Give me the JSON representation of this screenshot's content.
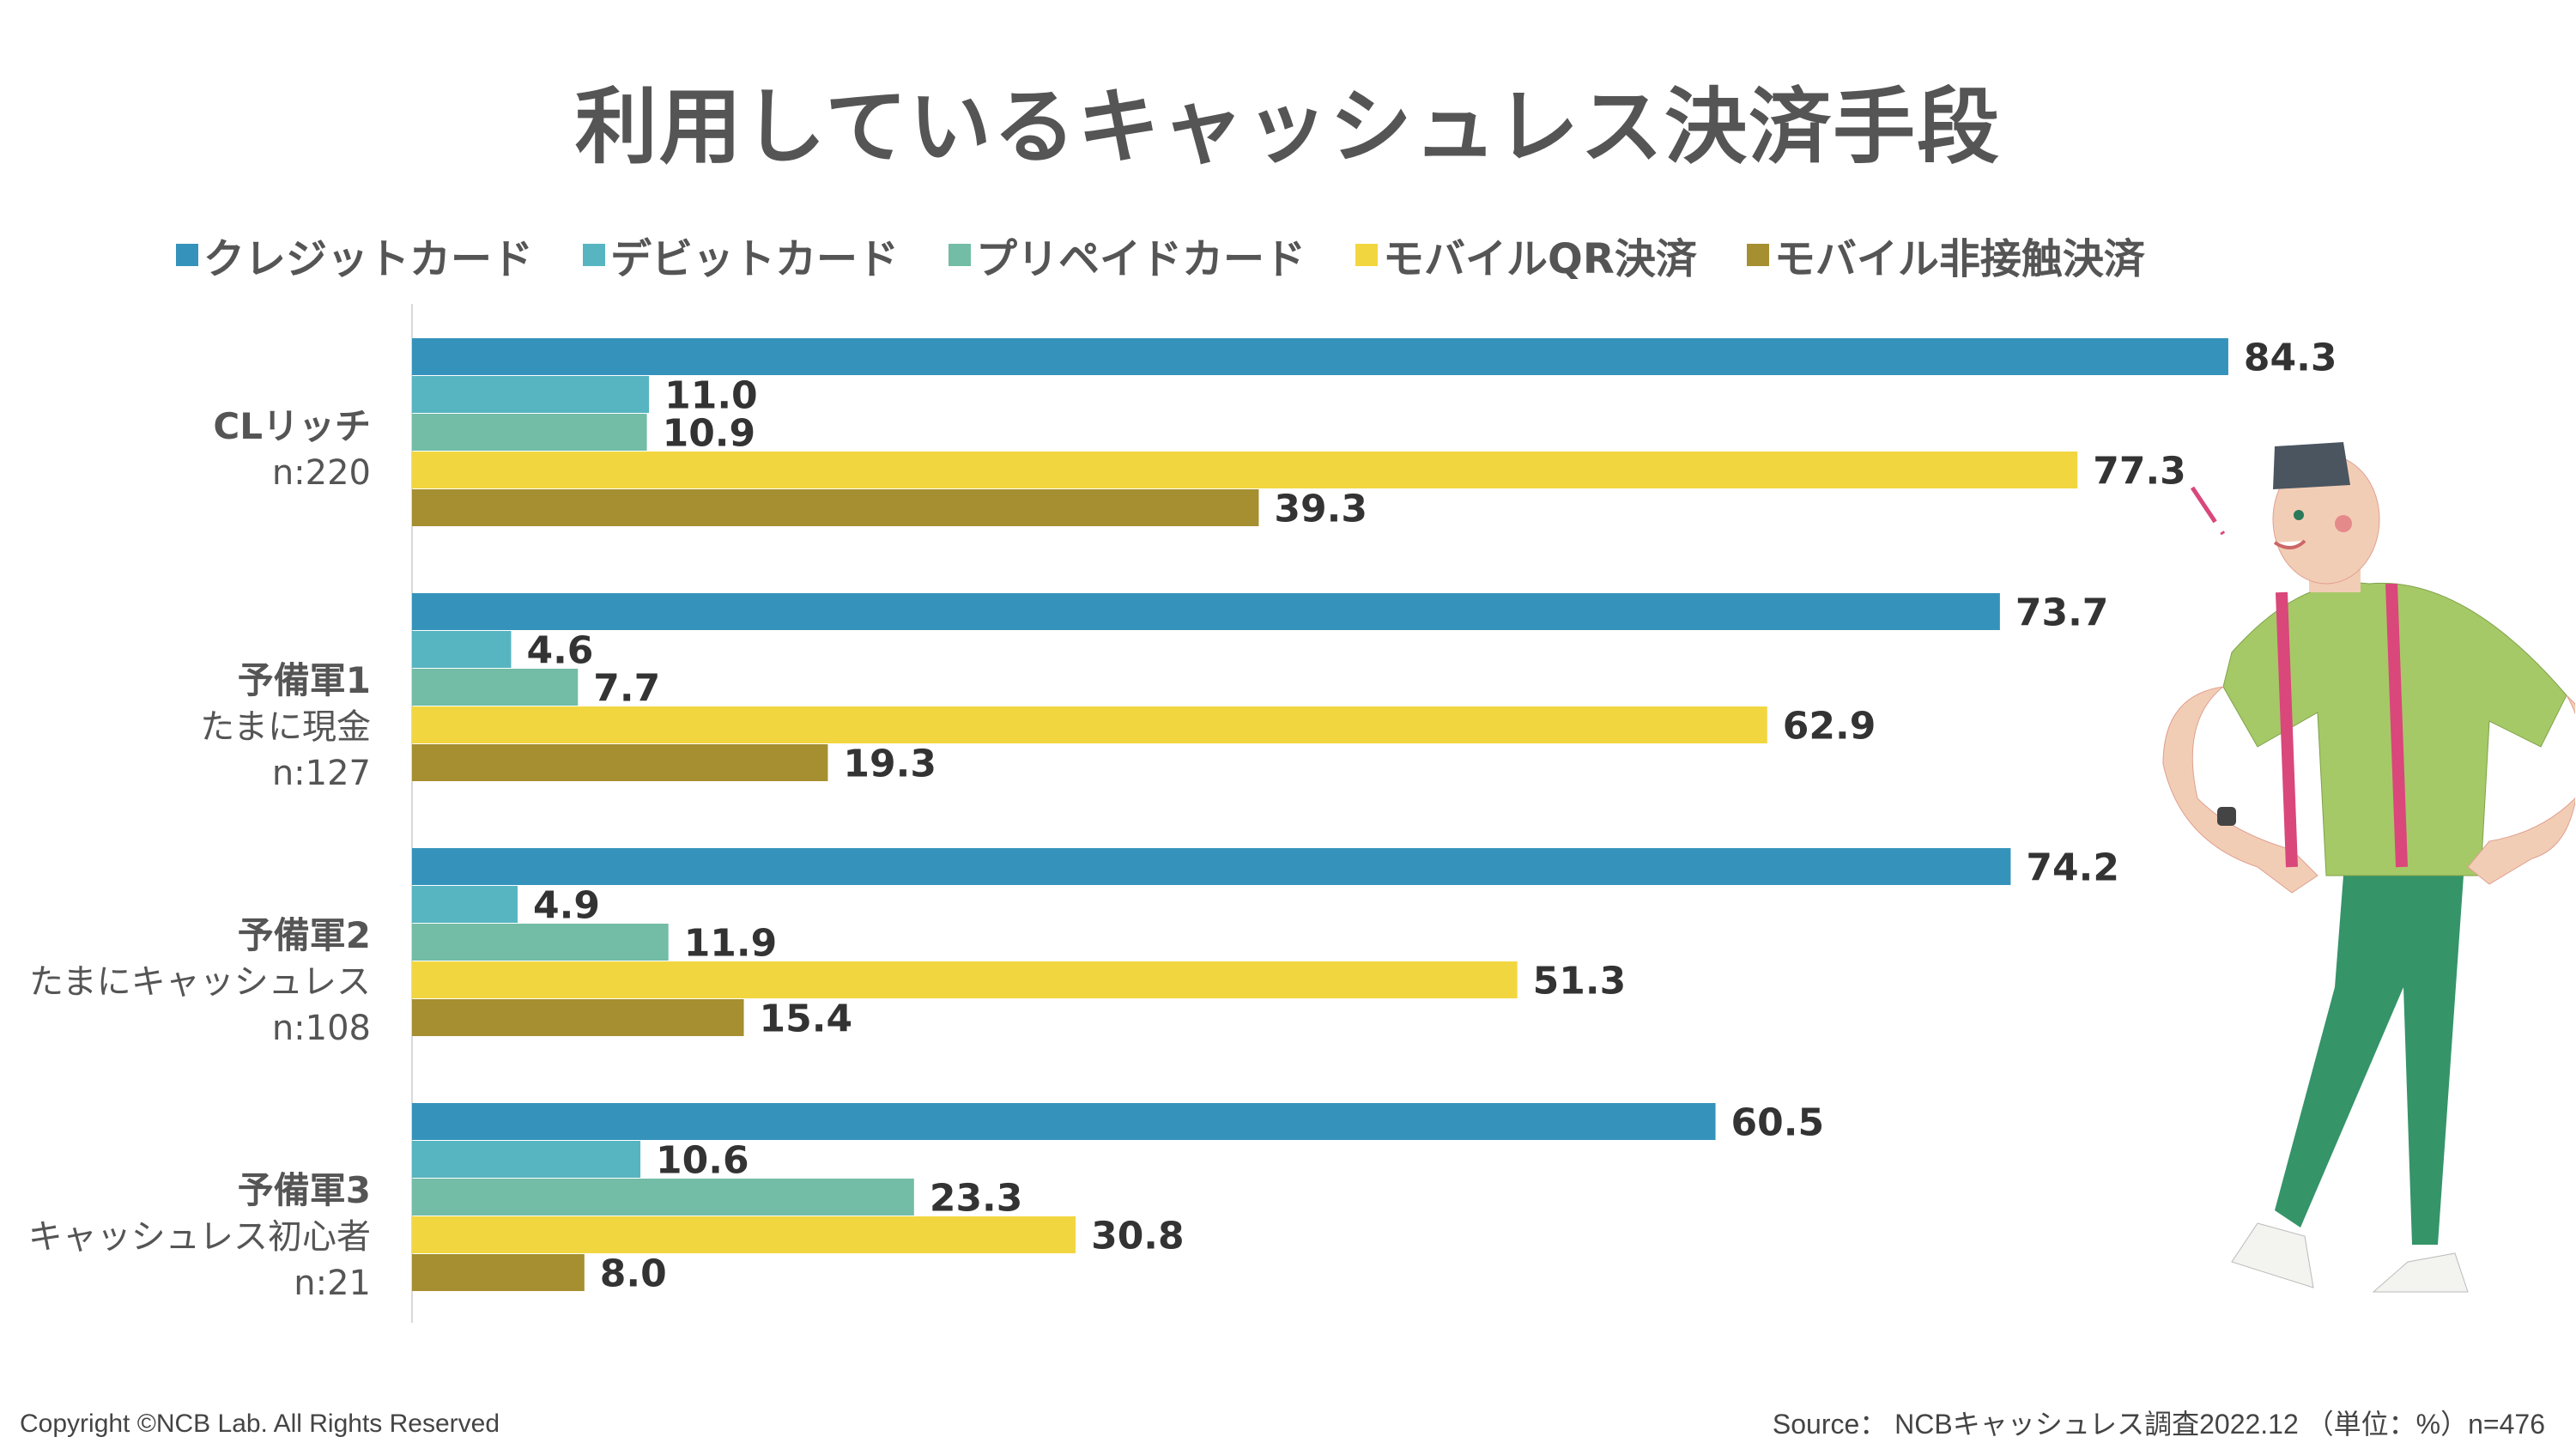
{
  "chart_data": {
    "type": "bar",
    "orientation": "horizontal",
    "title": "利用しているキャッシュレス決済手段",
    "legend_position": "top",
    "grid": false,
    "xlim": [
      0,
      100
    ],
    "categories": [
      {
        "name": "CLリッチ",
        "sub": "",
        "n": "n:220"
      },
      {
        "name": "予備軍1",
        "sub": "たまに現金",
        "n": "n:127"
      },
      {
        "name": "予備軍2",
        "sub": "たまにキャッシュレス",
        "n": "n:108"
      },
      {
        "name": "予備軍3",
        "sub": "キャッシュレス初心者",
        "n": "n:21"
      }
    ],
    "series": [
      {
        "name": "クレジットカード",
        "color": "#3593bb",
        "values": [
          84.3,
          73.7,
          74.2,
          60.5
        ]
      },
      {
        "name": "デビットカード",
        "color": "#57b5c1",
        "values": [
          11.0,
          4.6,
          4.9,
          10.6
        ]
      },
      {
        "name": "プリペイドカード",
        "color": "#73bca6",
        "values": [
          10.9,
          7.7,
          11.9,
          23.3
        ]
      },
      {
        "name": "モバイルQR決済",
        "color": "#f2d640",
        "values": [
          77.3,
          62.9,
          51.3,
          30.8
        ]
      },
      {
        "name": "モバイル非接触決済",
        "color": "#a58f30",
        "values": [
          39.3,
          19.3,
          15.4,
          8.0
        ]
      }
    ]
  },
  "footer": {
    "copyright": "Copyright ©NCB Lab. All Rights Reserved",
    "source": "Source： NCBキャッシュレス調査2022.12 （単位：%）n=476"
  }
}
